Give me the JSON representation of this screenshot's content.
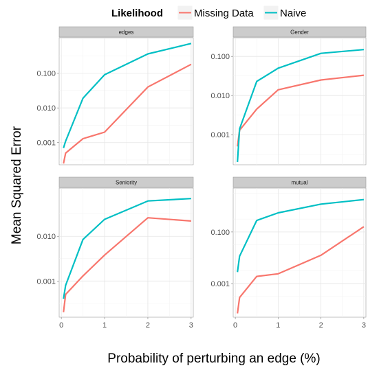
{
  "legend": {
    "title": "Likelihood",
    "entries": [
      {
        "label": "Missing Data",
        "color": "#F8766D"
      },
      {
        "label": "Naive",
        "color": "#00BFC4"
      }
    ]
  },
  "xlabel": "Probability of perturbing an edge (%)",
  "ylabel": "Mean Squared Error",
  "x_ticks": [
    0,
    1,
    2,
    3
  ],
  "chart_data": [
    {
      "type": "line",
      "title": "edges",
      "y_scale": "log",
      "x": [
        0.05,
        0.1,
        0.5,
        1,
        2,
        3
      ],
      "y_ticks": [
        0.001,
        0.01,
        0.1
      ],
      "y_tick_labels": [
        "0.001",
        "0.010",
        "0.100"
      ],
      "ylim": [
        0.00023,
        1.05
      ],
      "xlim": [
        -0.05,
        3.05
      ],
      "series": [
        {
          "name": "Missing Data",
          "color": "#F8766D",
          "values": [
            0.00025,
            0.0005,
            0.0013,
            0.002,
            0.04,
            0.18
          ]
        },
        {
          "name": "Naive",
          "color": "#00BFC4",
          "values": [
            0.0007,
            0.0011,
            0.019,
            0.09,
            0.36,
            0.72
          ]
        }
      ]
    },
    {
      "type": "line",
      "title": "Gender",
      "y_scale": "log",
      "x": [
        0.05,
        0.1,
        0.5,
        1,
        2,
        3
      ],
      "y_ticks": [
        0.001,
        0.01,
        0.1
      ],
      "y_tick_labels": [
        "0.001",
        "0.010",
        "0.100"
      ],
      "ylim": [
        0.00017,
        0.3
      ],
      "xlim": [
        -0.05,
        3.05
      ],
      "series": [
        {
          "name": "Missing Data",
          "color": "#F8766D",
          "values": [
            0.0005,
            0.0013,
            0.0045,
            0.014,
            0.025,
            0.033
          ]
        },
        {
          "name": "Naive",
          "color": "#00BFC4",
          "values": [
            0.0002,
            0.0014,
            0.023,
            0.05,
            0.12,
            0.15
          ]
        }
      ]
    },
    {
      "type": "line",
      "title": "Seniority",
      "y_scale": "log",
      "x": [
        0.05,
        0.1,
        0.5,
        1,
        2,
        3
      ],
      "y_ticks": [
        0.001,
        0.01
      ],
      "y_tick_labels": [
        "0.001",
        "0.010"
      ],
      "ylim": [
        0.000155,
        0.12
      ],
      "xlim": [
        -0.05,
        3.05
      ],
      "series": [
        {
          "name": "Missing Data",
          "color": "#F8766D",
          "values": [
            0.0002,
            0.0005,
            0.0013,
            0.0038,
            0.026,
            0.022
          ]
        },
        {
          "name": "Naive",
          "color": "#00BFC4",
          "values": [
            0.0004,
            0.0008,
            0.0085,
            0.024,
            0.062,
            0.07
          ]
        }
      ]
    },
    {
      "type": "line",
      "title": "mutual",
      "y_scale": "log",
      "x": [
        0.05,
        0.1,
        0.5,
        1,
        2,
        3
      ],
      "y_ticks": [
        0.001,
        0.1
      ],
      "y_tick_labels": [
        "0.001",
        "0.100"
      ],
      "ylim": [
        5e-05,
        5
      ],
      "xlim": [
        -0.05,
        3.05
      ],
      "series": [
        {
          "name": "Missing Data",
          "color": "#F8766D",
          "values": [
            7e-05,
            0.00029,
            0.0019,
            0.0024,
            0.0125,
            0.16
          ]
        },
        {
          "name": "Naive",
          "color": "#00BFC4",
          "values": [
            0.0028,
            0.0115,
            0.28,
            0.55,
            1.2,
            1.8
          ]
        }
      ]
    }
  ]
}
